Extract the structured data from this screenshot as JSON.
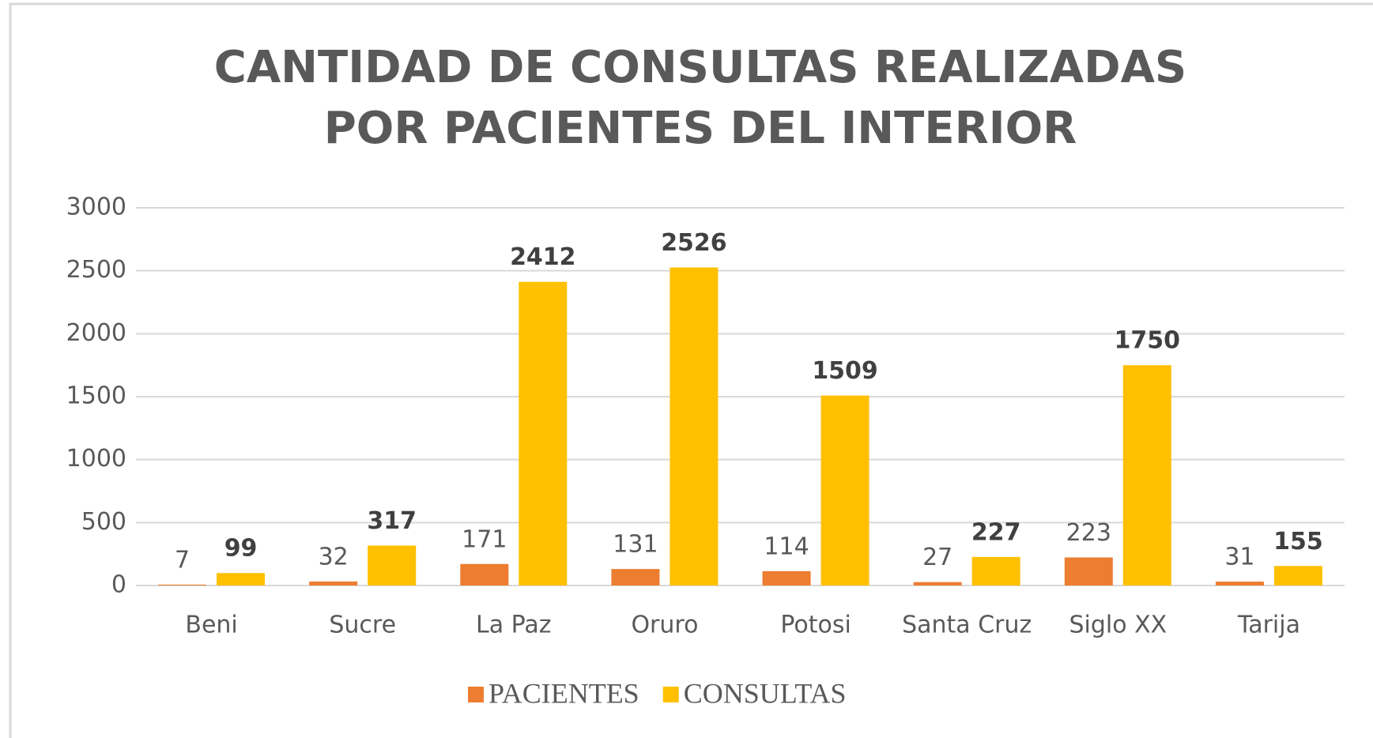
{
  "chart_data": {
    "type": "bar",
    "title": [
      "CANTIDAD DE CONSULTAS REALIZADAS",
      "POR PACIENTES DEL INTERIOR"
    ],
    "categories": [
      "Beni",
      "Sucre",
      "La Paz",
      "Oruro",
      "Potosi",
      "Santa Cruz",
      "Siglo XX",
      "Tarija"
    ],
    "series": [
      {
        "name": "PACIENTES",
        "color": "#ed7d31",
        "values": [
          7,
          32,
          171,
          131,
          114,
          27,
          223,
          31
        ]
      },
      {
        "name": "CONSULTAS",
        "color": "#ffc000",
        "values": [
          99,
          317,
          2412,
          2526,
          1509,
          227,
          1750,
          155
        ]
      }
    ],
    "ylim": [
      0,
      3000
    ],
    "yticks": [
      0,
      500,
      1000,
      1500,
      2000,
      2500,
      3000
    ],
    "grid": true,
    "legend": "bottom"
  }
}
